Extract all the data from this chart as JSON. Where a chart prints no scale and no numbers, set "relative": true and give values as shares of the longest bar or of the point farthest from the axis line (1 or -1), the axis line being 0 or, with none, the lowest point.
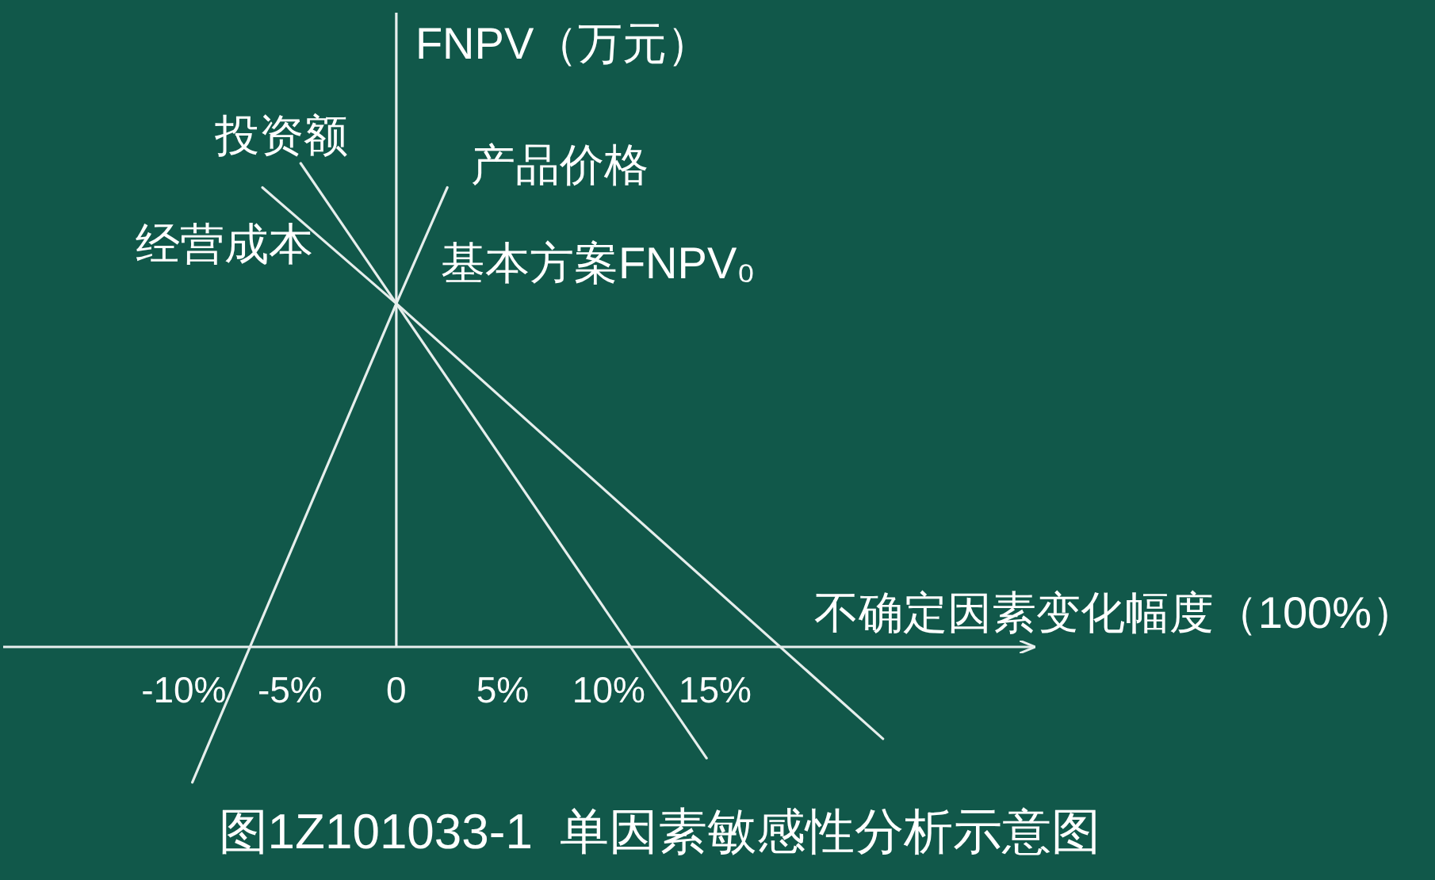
{
  "chart_data": {
    "type": "line",
    "relative": true,
    "ylabel": "FNPV（万元）",
    "xlabel": "不确定因素变化幅度（100%）",
    "xlim": [
      -18.5,
      30
    ],
    "xticks": [
      {
        "value": -10,
        "label": "-10%"
      },
      {
        "value": -5,
        "label": "-5%"
      },
      0,
      {
        "value": 5,
        "label": "5%"
      },
      {
        "value": 10,
        "label": "10%"
      },
      {
        "value": 15,
        "label": "15%"
      }
    ],
    "series": [
      {
        "name": "投资额",
        "color": "#e6eeec",
        "x": [
          -4.5,
          0,
          14.6
        ],
        "values": [
          1,
          0.71,
          -0.23
        ]
      },
      {
        "name": "经营成本",
        "color": "#e6eeec",
        "x": [
          -6.3,
          0,
          22.9
        ],
        "values": [
          0.95,
          0.71,
          -0.19
        ]
      },
      {
        "name": "产品价格",
        "color": "#e6eeec",
        "x": [
          -9.6,
          0,
          2.4
        ],
        "values": [
          -0.28,
          0.71,
          0.95
        ]
      }
    ],
    "annotations": [
      {
        "text": "基本方案FNPV₀",
        "x": 0,
        "y": 0.71
      },
      "图1Z101033-1  单因素敏感性分析示意图"
    ]
  }
}
